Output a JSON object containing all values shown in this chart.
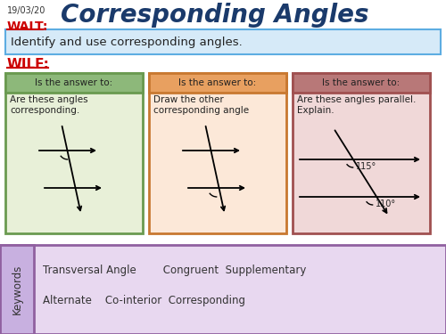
{
  "title": "Corresponding Angles",
  "date": "19/03/20",
  "walt_label": "WALT:",
  "walt_text": "Identify and use corresponding angles.",
  "wilf_label": "WILF:",
  "box1_header": "Is the answer to:",
  "box2_header": "Is the answer to:",
  "box3_header": "Is the answer to:",
  "box1_text": "Are these angles\ncorresponding.",
  "box2_text": "Draw the other\ncorresponding angle",
  "box3_text": "Are these angles parallel.\nExplain.",
  "box3_angle1": "115°",
  "box3_angle2": "110°",
  "keywords_label": "Keywords",
  "keywords_line1": "Transversal Angle        Congruent  Supplementary",
  "keywords_line2": "Alternate    Co-interior  Corresponding",
  "bg_color": "#ffffff",
  "title_color": "#1a3a6b",
  "walt_color": "#cc0000",
  "wilf_color": "#cc0000",
  "walt_bg": "#d6eaf8",
  "walt_border": "#5dade2",
  "box1_header_bg": "#8db87a",
  "box1_bg": "#e8f0d8",
  "box1_border": "#6a9a50",
  "box2_header_bg": "#e8a060",
  "box2_bg": "#fce8d8",
  "box2_border": "#c87830",
  "box3_header_bg": "#b87878",
  "box3_bg": "#f0d8d8",
  "box3_border": "#a05050",
  "keywords_bg": "#e8d8f0",
  "keywords_border": "#9060a0",
  "keywords_label_bg": "#c8b0e0"
}
